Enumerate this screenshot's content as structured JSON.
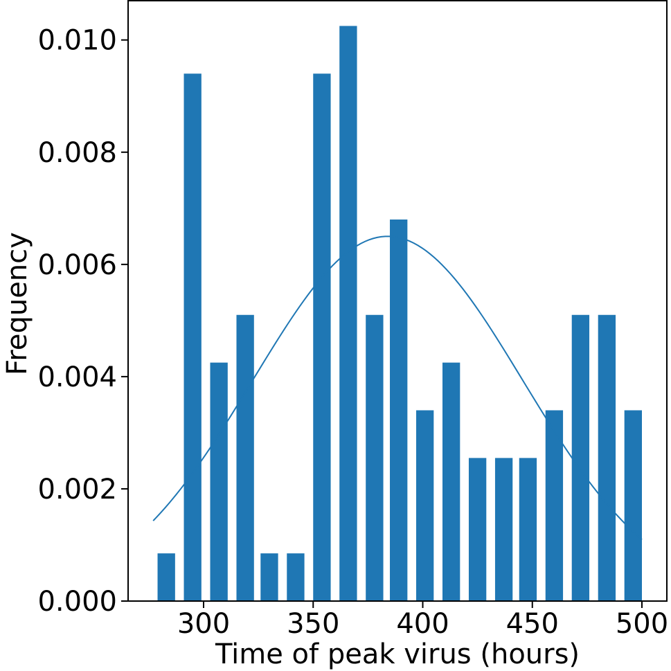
{
  "chart_data": {
    "type": "bar",
    "title": "",
    "xlabel": "Time of peak virus (hours)",
    "ylabel": "Frequency",
    "xlim": [
      265,
      1010
    ],
    "ylim": [
      0,
      0.0107
    ],
    "x_ticks": [
      300,
      350,
      400,
      450,
      500
    ],
    "x_tick_labels": [
      "300",
      "350",
      "400",
      "450",
      "500"
    ],
    "y_ticks": [
      0.0,
      0.002,
      0.004,
      0.006,
      0.008,
      0.01
    ],
    "y_tick_labels": [
      "0.000",
      "0.002",
      "0.004",
      "0.006",
      "0.008",
      "0.010"
    ],
    "grid": false,
    "bars": {
      "x": [
        283,
        295,
        307,
        319,
        330,
        342,
        354,
        366,
        378,
        389,
        401,
        413,
        425,
        437,
        448,
        460,
        472,
        484,
        496
      ],
      "values": [
        0.00085,
        0.0094,
        0.00425,
        0.0051,
        0.00085,
        0.00085,
        0.0094,
        0.01025,
        0.0051,
        0.0068,
        0.0034,
        0.00425,
        0.00255,
        0.00255,
        0.00255,
        0.0034,
        0.0051,
        0.0051,
        0.0034
      ],
      "width": 8,
      "color": "#1f77b4"
    },
    "curve": {
      "type": "line",
      "color": "#1f77b4",
      "mean": 384,
      "std": 61.5,
      "peak": 0.0065,
      "x_range": [
        277,
        500
      ]
    }
  }
}
